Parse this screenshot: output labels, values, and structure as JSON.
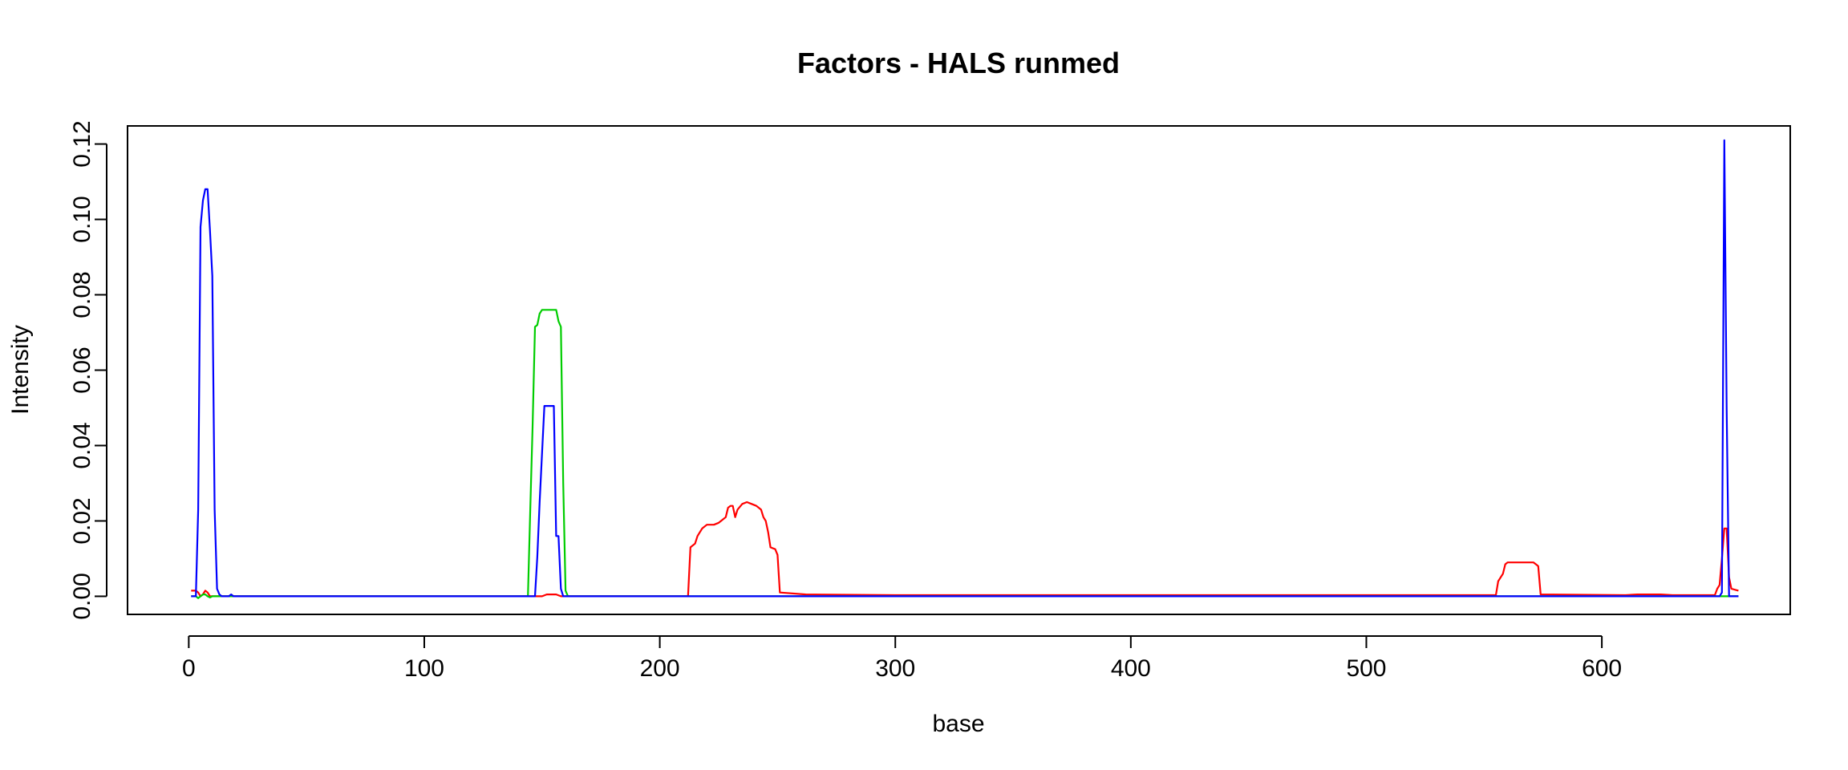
{
  "chart_data": {
    "type": "line",
    "title": "Factors - HALS runmed",
    "xlabel": "base",
    "ylabel": "Intensity",
    "xlim": [
      -26,
      680
    ],
    "ylim": [
      -0.0048,
      0.1248
    ],
    "xticks": [
      0,
      100,
      200,
      300,
      400,
      500,
      600
    ],
    "xtick_labels": [
      "0",
      "100",
      "200",
      "300",
      "400",
      "500",
      "600"
    ],
    "yticks": [
      0.0,
      0.02,
      0.04,
      0.06,
      0.08,
      0.1,
      0.12
    ],
    "ytick_labels": [
      "0.00",
      "0.02",
      "0.04",
      "0.06",
      "0.08",
      "0.10",
      "0.12"
    ],
    "grid": false,
    "series": [
      {
        "color": "#ff0000",
        "points": [
          [
            1,
            0.0015
          ],
          [
            3,
            0.0015
          ],
          [
            4,
            0.001
          ],
          [
            5,
            0.0
          ],
          [
            6,
            0.0005
          ],
          [
            7,
            0.0015
          ],
          [
            8,
            0.001
          ],
          [
            9,
            0.0
          ],
          [
            150,
            0.0
          ],
          [
            152,
            0.0005
          ],
          [
            156,
            0.0005
          ],
          [
            158,
            0.0
          ],
          [
            212,
            0.0
          ],
          [
            213,
            0.013
          ],
          [
            215,
            0.014
          ],
          [
            216,
            0.016
          ],
          [
            218,
            0.018
          ],
          [
            220,
            0.019
          ],
          [
            223,
            0.019
          ],
          [
            225,
            0.0195
          ],
          [
            226,
            0.02
          ],
          [
            228,
            0.021
          ],
          [
            229,
            0.0235
          ],
          [
            230,
            0.024
          ],
          [
            231,
            0.024
          ],
          [
            232,
            0.021
          ],
          [
            233,
            0.023
          ],
          [
            235,
            0.0245
          ],
          [
            237,
            0.025
          ],
          [
            239,
            0.0245
          ],
          [
            241,
            0.024
          ],
          [
            243,
            0.023
          ],
          [
            244,
            0.021
          ],
          [
            245,
            0.02
          ],
          [
            246,
            0.017
          ],
          [
            247,
            0.013
          ],
          [
            249,
            0.0125
          ],
          [
            250,
            0.011
          ],
          [
            251,
            0.001
          ],
          [
            262,
            0.0005
          ],
          [
            300,
            0.0003
          ],
          [
            500,
            0.0003
          ],
          [
            555,
            0.0003
          ],
          [
            556,
            0.004
          ],
          [
            558,
            0.006
          ],
          [
            559,
            0.0085
          ],
          [
            560,
            0.009
          ],
          [
            571,
            0.009
          ],
          [
            572,
            0.0085
          ],
          [
            573,
            0.008
          ],
          [
            574,
            0.0005
          ],
          [
            610,
            0.0003
          ],
          [
            615,
            0.0005
          ],
          [
            625,
            0.0005
          ],
          [
            630,
            0.0003
          ],
          [
            648,
            0.0003
          ],
          [
            649,
            0.002
          ],
          [
            650,
            0.003
          ],
          [
            651,
            0.01
          ],
          [
            652,
            0.018
          ],
          [
            653,
            0.018
          ],
          [
            654,
            0.005
          ],
          [
            655,
            0.002
          ],
          [
            658,
            0.0015
          ]
        ]
      },
      {
        "color": "#00cd00",
        "points": [
          [
            1,
            0.0
          ],
          [
            3,
            0.0
          ],
          [
            4,
            -0.0005
          ],
          [
            5,
            0.0
          ],
          [
            6,
            0.0005
          ],
          [
            7,
            0.0005
          ],
          [
            8,
            0.0
          ],
          [
            9,
            -0.0003
          ],
          [
            10,
            0.0
          ],
          [
            144,
            0.0
          ],
          [
            145,
            0.023
          ],
          [
            146,
            0.045
          ],
          [
            147,
            0.0715
          ],
          [
            148,
            0.072
          ],
          [
            149,
            0.075
          ],
          [
            150,
            0.076
          ],
          [
            156,
            0.076
          ],
          [
            157,
            0.073
          ],
          [
            158,
            0.0715
          ],
          [
            159,
            0.03
          ],
          [
            160,
            0.0015
          ],
          [
            161,
            0.0
          ],
          [
            658,
            0.0
          ]
        ]
      },
      {
        "color": "#0000ff",
        "points": [
          [
            1,
            0.0
          ],
          [
            3,
            0.0
          ],
          [
            4,
            0.023
          ],
          [
            5,
            0.098
          ],
          [
            6,
            0.105
          ],
          [
            7,
            0.108
          ],
          [
            8,
            0.108
          ],
          [
            9,
            0.097
          ],
          [
            10,
            0.085
          ],
          [
            11,
            0.023
          ],
          [
            12,
            0.002
          ],
          [
            13,
            0.0005
          ],
          [
            14,
            0.0
          ],
          [
            17,
            0.0
          ],
          [
            18,
            0.0005
          ],
          [
            19,
            0.0
          ],
          [
            147,
            0.0
          ],
          [
            148,
            0.0105
          ],
          [
            149,
            0.025
          ],
          [
            150,
            0.038
          ],
          [
            151,
            0.0505
          ],
          [
            155,
            0.0505
          ],
          [
            156,
            0.016
          ],
          [
            157,
            0.016
          ],
          [
            158,
            0.002
          ],
          [
            159,
            0.0
          ],
          [
            650,
            0.0
          ],
          [
            651,
            0.001
          ],
          [
            652,
            0.121
          ],
          [
            653,
            0.05
          ],
          [
            654,
            0.0
          ],
          [
            658,
            0.0
          ]
        ]
      }
    ]
  }
}
